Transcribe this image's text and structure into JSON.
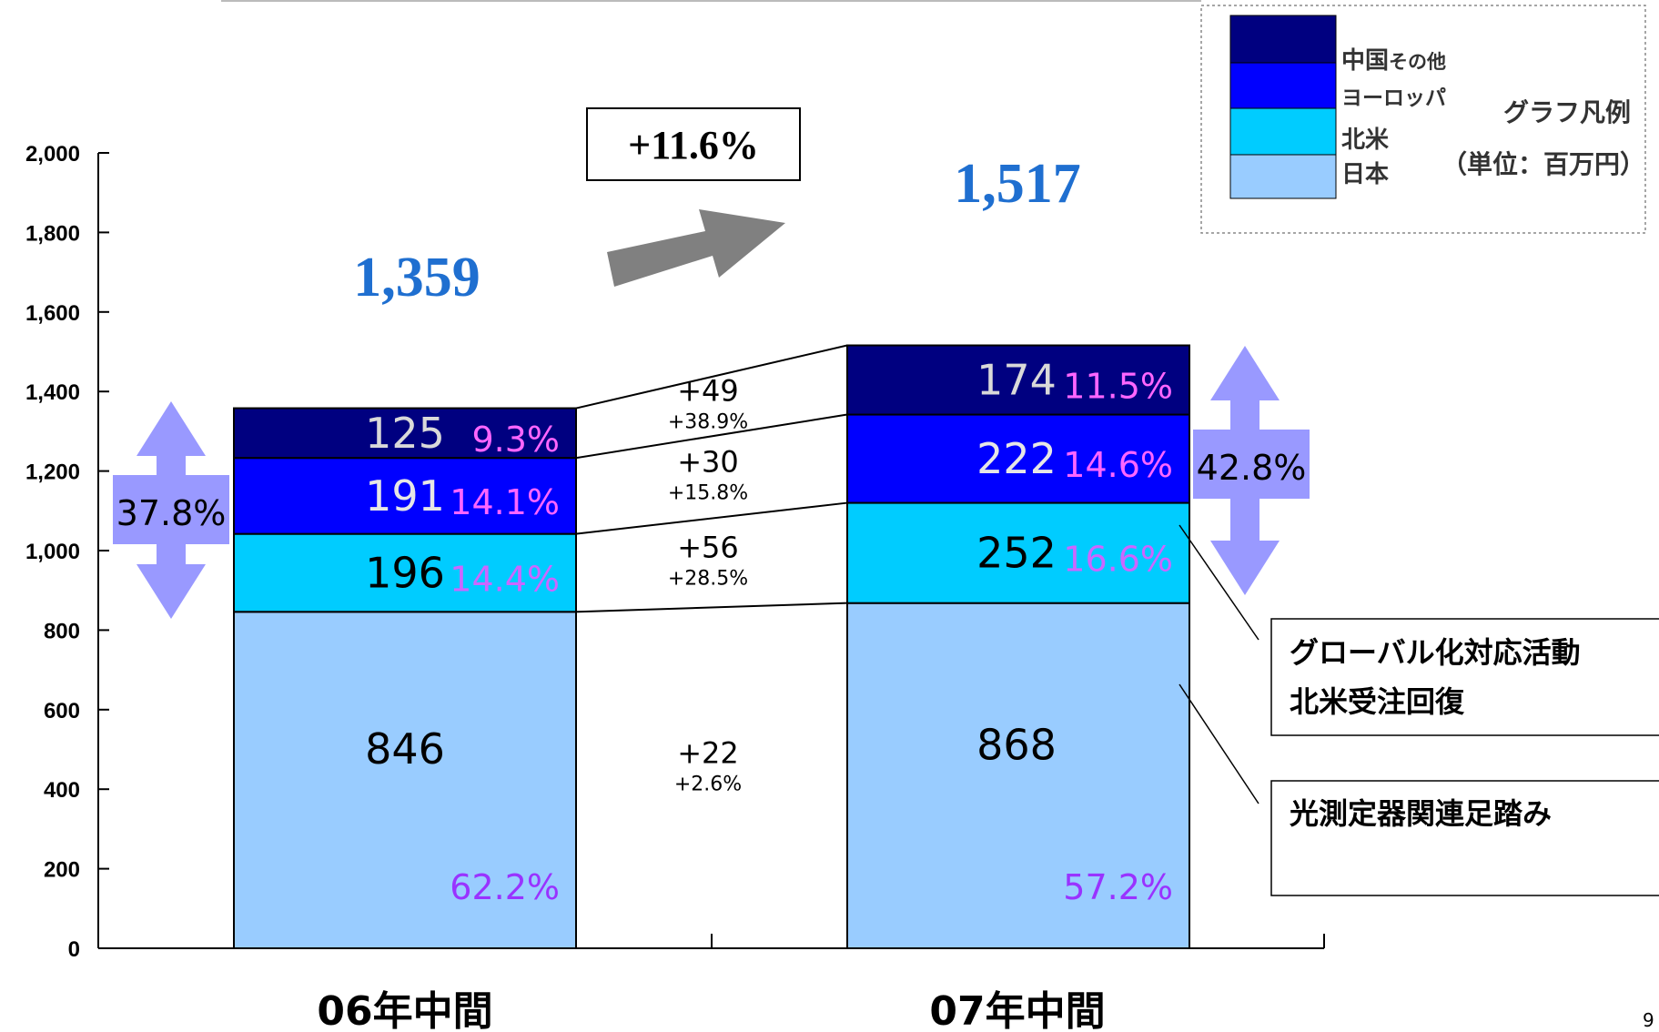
{
  "chart_data": {
    "type": "bar",
    "stacked": true,
    "categories": [
      "06年中間",
      "07年中間"
    ],
    "y_ticks": [
      "0",
      "200",
      "400",
      "600",
      "800",
      "1,000",
      "1,200",
      "1,400",
      "1,600",
      "1,800",
      "2,000"
    ],
    "ylim": [
      0,
      2000
    ],
    "series": [
      {
        "name": "日本",
        "values": [
          846,
          868
        ],
        "labels": [
          "846",
          "868"
        ],
        "pct": [
          "62.2%",
          "57.2%"
        ],
        "color": "#99ccff",
        "text_color": "#000000",
        "pct_color": "#9933ff"
      },
      {
        "name": "北米",
        "values": [
          196,
          252
        ],
        "labels": [
          "196",
          "252"
        ],
        "pct": [
          "14.4%",
          "16.6%"
        ],
        "color": "#00ccff",
        "text_color": "#000000",
        "pct_color": "#cc66ff"
      },
      {
        "name": "ヨーロッパ",
        "values": [
          191,
          222
        ],
        "labels": [
          "191",
          "222"
        ],
        "pct": [
          "14.1%",
          "14.6%"
        ],
        "color": "#0000ff",
        "text_color": "#e6e6e6",
        "pct_color": "#ff66ff"
      },
      {
        "name": "中国その他",
        "values": [
          125,
          174
        ],
        "labels": [
          "125",
          "174"
        ],
        "pct": [
          "9.3%",
          "11.5%"
        ],
        "color": "#000080",
        "text_color": "#d9d9d9",
        "pct_color": "#ff66ff"
      }
    ],
    "changes": [
      {
        "abs": "+22",
        "pct": "+2.6%"
      },
      {
        "abs": "+56",
        "pct": "+28.5%"
      },
      {
        "abs": "+30",
        "pct": "+15.8%"
      },
      {
        "abs": "+49",
        "pct": "+38.9%"
      }
    ],
    "totals": [
      "1,359",
      "1,517"
    ],
    "total_growth": "+11.6%",
    "overseas_share": [
      "37.8%",
      "42.8%"
    ],
    "legend": {
      "entries": [
        {
          "label": "中国",
          "suffix": "その他"
        },
        {
          "label": "ヨーロッパ",
          "suffix": ""
        },
        {
          "label": "北米",
          "suffix": ""
        },
        {
          "label": "日本",
          "suffix": ""
        }
      ],
      "title": "グラフ凡例",
      "unit": "（単位：百万円）"
    },
    "notes": [
      {
        "lines": [
          "グローバル化対応活動",
          "北米受注回復"
        ]
      },
      {
        "lines": [
          "光測定器関連足踏み"
        ]
      }
    ],
    "accent_color": "#1f6fd0",
    "arrow_color": "#9999ff"
  },
  "page_number": "9"
}
